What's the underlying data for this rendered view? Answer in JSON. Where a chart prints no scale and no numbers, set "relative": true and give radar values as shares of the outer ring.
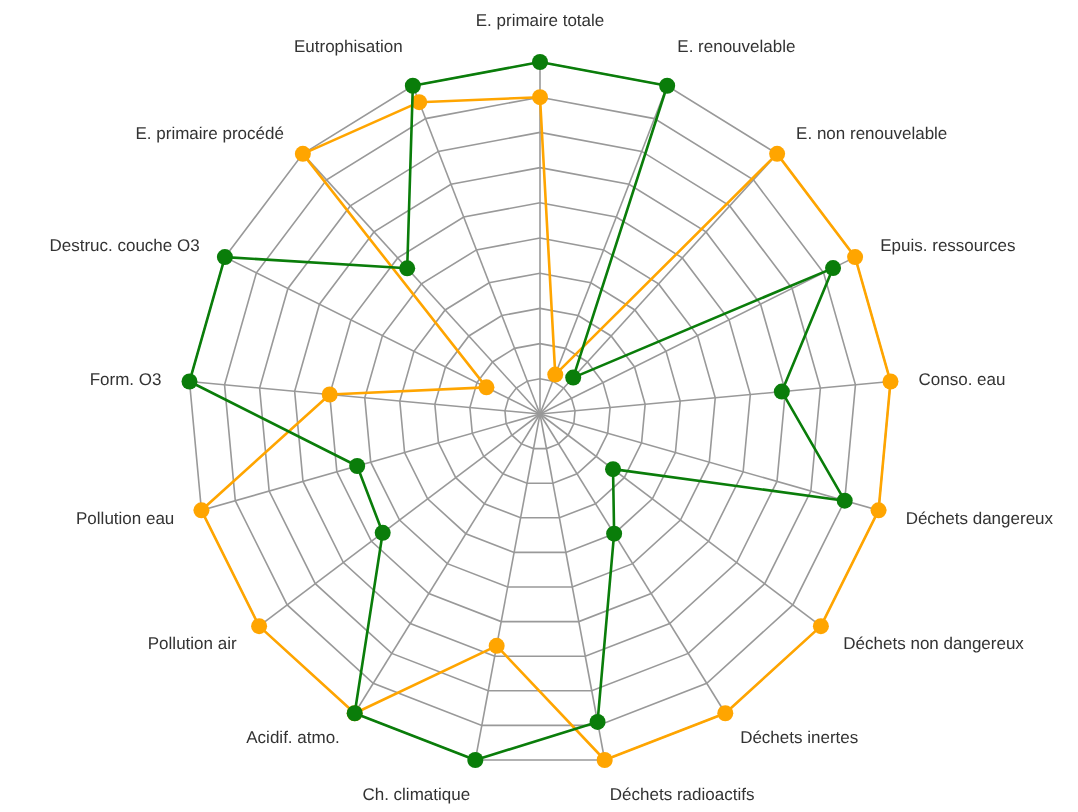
{
  "chart_data": {
    "type": "radar",
    "relative": true,
    "grid": true,
    "marker": "circle",
    "line_style": "solid",
    "categories": [
      "E. primaire totale",
      "E. renouvelable",
      "E. non renouvelable",
      "Epuis. ressources",
      "Conso. eau",
      "Déchets dangereux",
      "Déchets non dangereux",
      "Déchets inertes",
      "Déchets radioactifs",
      "Ch. climatique",
      "Acidif. atmo.",
      "Pollution air",
      "Pollution eau",
      "Form. O3",
      "Destruc. couche O3",
      "E. primaire procédé",
      "Eutrophisation"
    ],
    "series": [
      {
        "color": "#ffa500",
        "values": [
          0.9,
          0.12,
          1,
          1,
          1,
          1,
          1,
          1,
          1,
          0.67,
          1,
          1,
          1,
          0.6,
          0.17,
          1,
          0.95
        ]
      },
      {
        "color": "#0a7d0a",
        "values": [
          1,
          1,
          0.14,
          0.93,
          0.69,
          0.9,
          0.26,
          0.4,
          0.89,
          1,
          1,
          0.56,
          0.54,
          1,
          1,
          0.56,
          1
        ]
      }
    ]
  }
}
